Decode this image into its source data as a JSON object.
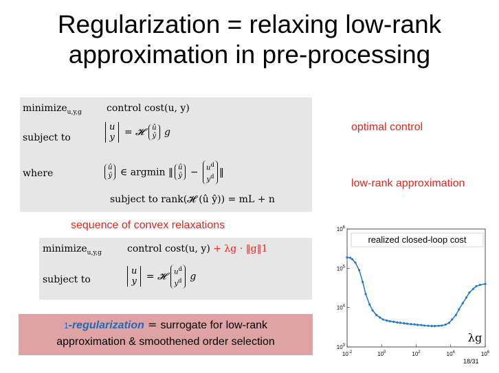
{
  "title_line1": "Regularization = relaxing low-rank",
  "title_line2": "approximation in pre-processing",
  "problem1": {
    "minimize": "minimize",
    "minimize_sub": "u,y,g",
    "objective": "control cost(u, y)",
    "subject_to": "subject to",
    "where": "where",
    "argmin": "∈ argmin",
    "rank_constraint": "subject to rank(𝓗 (û ŷ)) = mL + n"
  },
  "labels": {
    "optimal_control": "optimal control",
    "low_rank": "low-rank approximation",
    "sequence": "sequence of convex relaxations"
  },
  "problem2": {
    "minimize": "minimize",
    "minimize_sub": "u,y,g",
    "objective": "control cost(u, y)",
    "reg_term": "+ λg · ‖g‖1",
    "subject_to": "subject to"
  },
  "callout": {
    "prefix": "1",
    "term": "-regularization",
    "eq": " = ",
    "text1": "surrogate for low-rank",
    "text2": "approximation & smoothened order selection"
  },
  "chart_data": {
    "type": "line",
    "title": "realized closed-loop cost",
    "xlabel": "λg",
    "ylabel": "",
    "xscale": "log",
    "yscale": "log",
    "xlim": [
      0.01,
      1000000
    ],
    "ylim": [
      1000,
      1000000
    ],
    "xticks": [
      "10-2",
      "100",
      "102",
      "104",
      "106"
    ],
    "yticks": [
      "103",
      "104",
      "105",
      "106"
    ],
    "x": [
      0.01,
      0.015,
      0.02,
      0.03,
      0.05,
      0.08,
      0.12,
      0.2,
      0.3,
      0.5,
      0.8,
      1.2,
      2,
      3,
      5,
      8,
      12,
      20,
      30,
      50,
      80,
      120,
      200,
      300,
      500,
      800,
      1200,
      2000,
      3000,
      5000,
      8000,
      12000,
      20000,
      30000,
      50000,
      80000,
      120000,
      200000,
      300000,
      500000,
      1000000
    ],
    "y": [
      190000,
      185000,
      170000,
      140000,
      90000,
      45000,
      22000,
      12000,
      8500,
      6500,
      5600,
      5000,
      4700,
      4500,
      4350,
      4200,
      4100,
      4000,
      3900,
      3800,
      3750,
      3650,
      3600,
      3500,
      3450,
      3400,
      3400,
      3450,
      3500,
      3700,
      4100,
      5000,
      6500,
      9000,
      13000,
      18000,
      24000,
      30000,
      35000,
      38000,
      40000
    ]
  },
  "page_number": "18/31"
}
